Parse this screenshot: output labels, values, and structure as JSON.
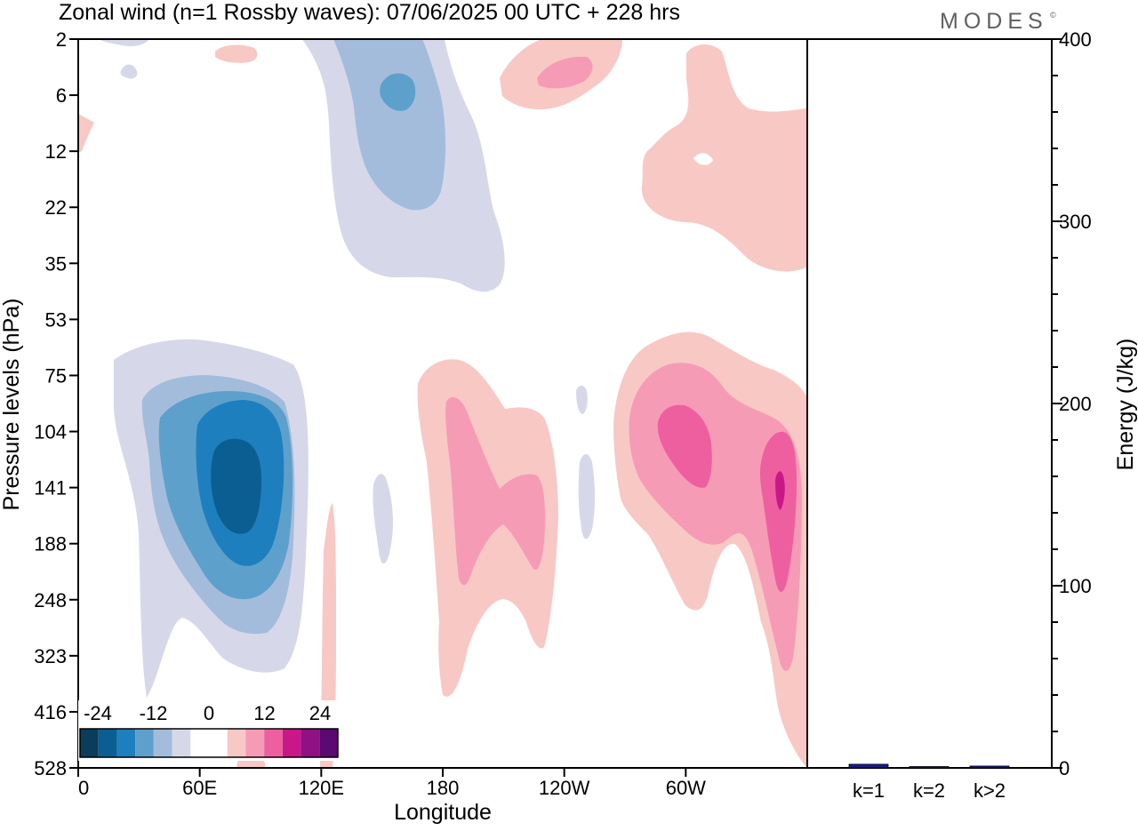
{
  "title": "Zonal wind (n=1 Rossby waves):  07/06/2025  00 UTC  + 228 hrs",
  "brand": {
    "text": "MODES",
    "mark": "©"
  },
  "chart_data": [
    {
      "type": "heatmap",
      "xlabel": "Longitude",
      "ylabel": "Pressure levels (hPa)",
      "x_tick_labels": [
        "0",
        "60E",
        "120E",
        "180",
        "120W",
        "60W"
      ],
      "y_tick_labels": [
        "2",
        "6",
        "12",
        "22",
        "35",
        "53",
        "75",
        "104",
        "141",
        "188",
        "248",
        "323",
        "416",
        "528"
      ],
      "colorbar": {
        "tick_labels": [
          "-24",
          "-12",
          "0",
          "12",
          "24"
        ],
        "colors": [
          "#0a3c5c",
          "#0b5e92",
          "#1e7fbe",
          "#5ea0cc",
          "#a4bcdb",
          "#d6d8ea",
          "#ffffff",
          "#ffffff",
          "#f8c8c5",
          "#f69bb5",
          "#ee5fa0",
          "#c9178a",
          "#8f1184",
          "#5a0a72"
        ],
        "neutral_color": "#ffffff"
      },
      "features": [
        {
          "sign": "negative",
          "level": 4,
          "lon_center": 78,
          "pressure_center": 141,
          "note": "strongest easterly core near 60E-90E"
        },
        {
          "sign": "negative",
          "level": 2,
          "lon_center": 155,
          "pressure_center": 6,
          "note": "upper-level easterly near 150E"
        },
        {
          "sign": "positive",
          "level": 2,
          "lon_center": 200,
          "pressure_center": 141,
          "note": "westerly near dateline"
        },
        {
          "sign": "positive",
          "level": 3,
          "lon_center": 290,
          "pressure_center": 104,
          "note": "westerly core near 70W"
        },
        {
          "sign": "positive",
          "level": 4,
          "lon_center": 343,
          "pressure_center": 141,
          "note": "westerly core near 20W"
        },
        {
          "sign": "positive",
          "level": 1,
          "lon_center": 315,
          "pressure_center": 12,
          "note": "upper-level westerly"
        }
      ]
    },
    {
      "type": "bar",
      "ylabel": "Energy (J/kg)",
      "ylim": [
        0,
        400
      ],
      "y_tick_labels": [
        "0",
        "100",
        "200",
        "300",
        "400"
      ],
      "categories": [
        "k=1",
        "k=2",
        "k>2"
      ],
      "values": [
        2,
        0.3,
        1
      ],
      "bar_color": "#1a1a8c"
    }
  ]
}
